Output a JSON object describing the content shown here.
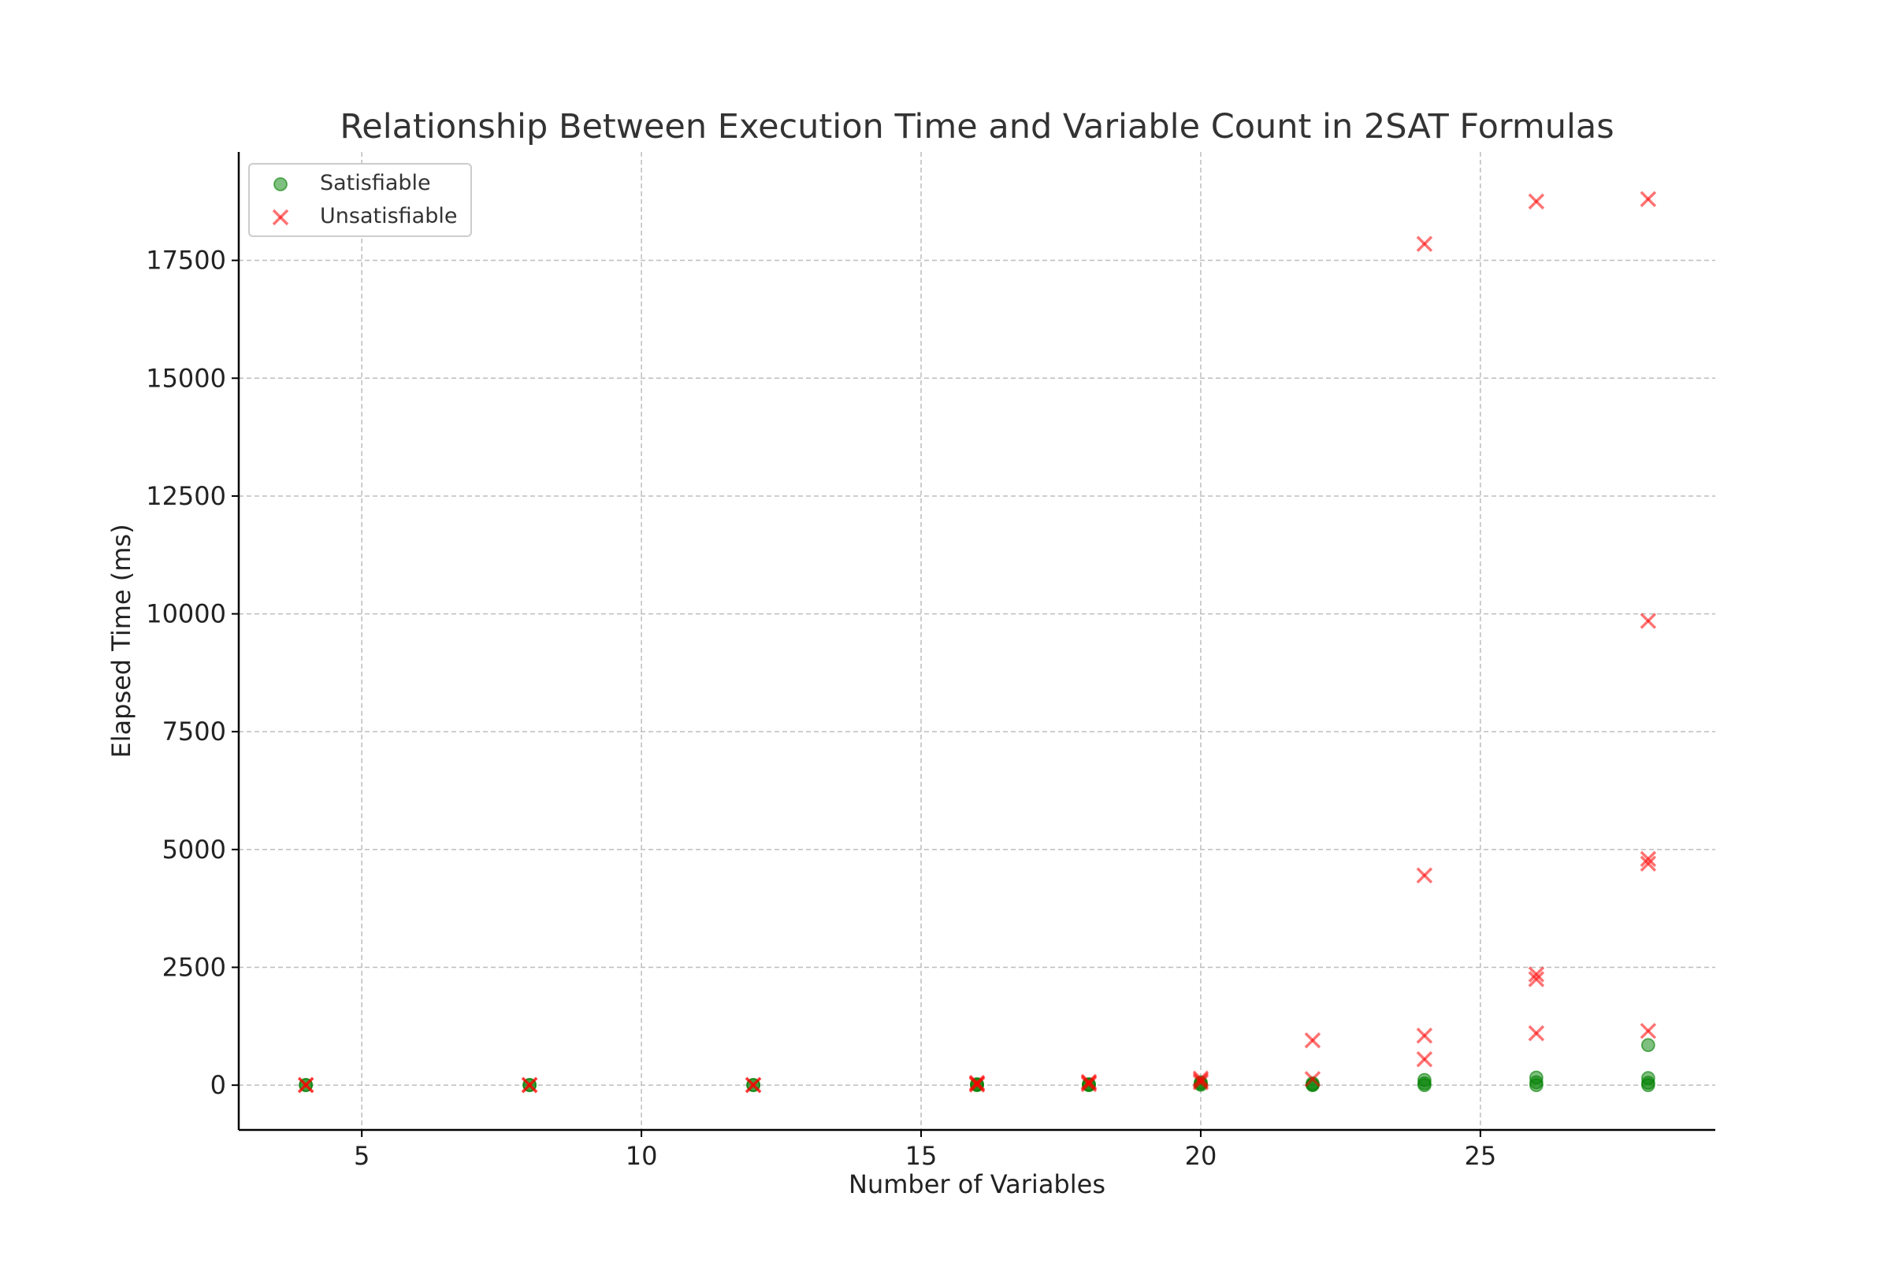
{
  "chart_data": {
    "type": "scatter",
    "title": "Relationship Between Execution Time and Variable Count in 2SAT Formulas",
    "xlabel": "Number of Variables",
    "ylabel": "Elapsed Time (ms)",
    "xlim": [
      2.8,
      29.2
    ],
    "ylim": [
      -950,
      19800
    ],
    "xticks": [
      5,
      10,
      15,
      20,
      25
    ],
    "yticks": [
      0,
      2500,
      5000,
      7500,
      10000,
      12500,
      15000,
      17500
    ],
    "grid": true,
    "legend_position": "top-left",
    "series": [
      {
        "name": "Satisfiable",
        "marker": "circle",
        "color": "#008000",
        "points": [
          [
            4,
            0
          ],
          [
            4,
            5
          ],
          [
            8,
            0
          ],
          [
            8,
            5
          ],
          [
            12,
            0
          ],
          [
            12,
            5
          ],
          [
            16,
            0
          ],
          [
            16,
            10
          ],
          [
            16,
            20
          ],
          [
            18,
            0
          ],
          [
            18,
            10
          ],
          [
            18,
            20
          ],
          [
            20,
            10
          ],
          [
            20,
            30
          ],
          [
            20,
            60
          ],
          [
            22,
            0
          ],
          [
            22,
            10
          ],
          [
            22,
            40
          ],
          [
            24,
            0
          ],
          [
            24,
            40
          ],
          [
            24,
            110
          ],
          [
            26,
            0
          ],
          [
            26,
            60
          ],
          [
            26,
            160
          ],
          [
            28,
            0
          ],
          [
            28,
            50
          ],
          [
            28,
            150
          ],
          [
            28,
            850
          ]
        ]
      },
      {
        "name": "Unsatisfiable",
        "marker": "x",
        "color": "#ff0000",
        "points": [
          [
            4,
            0
          ],
          [
            4,
            5
          ],
          [
            8,
            0
          ],
          [
            8,
            5
          ],
          [
            12,
            0
          ],
          [
            12,
            5
          ],
          [
            16,
            10
          ],
          [
            16,
            30
          ],
          [
            16,
            50
          ],
          [
            18,
            20
          ],
          [
            18,
            50
          ],
          [
            18,
            70
          ],
          [
            20,
            60
          ],
          [
            20,
            100
          ],
          [
            20,
            140
          ],
          [
            22,
            130
          ],
          [
            22,
            950
          ],
          [
            24,
            550
          ],
          [
            24,
            1050
          ],
          [
            24,
            4450
          ],
          [
            24,
            17850
          ],
          [
            26,
            1100
          ],
          [
            26,
            2250
          ],
          [
            26,
            2350
          ],
          [
            26,
            18750
          ],
          [
            28,
            1150
          ],
          [
            28,
            4700
          ],
          [
            28,
            4800
          ],
          [
            28,
            9850
          ],
          [
            28,
            18800
          ]
        ]
      }
    ]
  }
}
